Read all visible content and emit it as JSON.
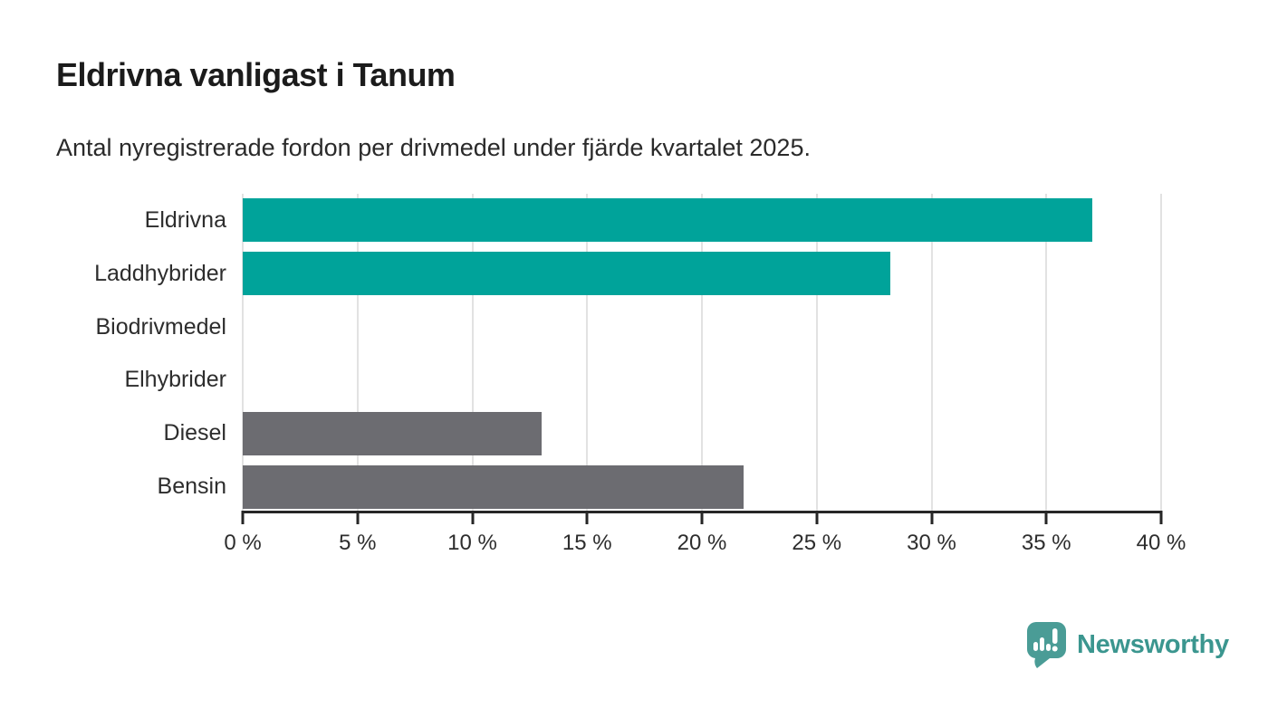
{
  "page": {
    "title": "Eldrivna vanligast i Tanum",
    "subtitle": "Antal nyregistrerade fordon per drivmedel under fjärde kvartalet 2025."
  },
  "chart_data": {
    "type": "bar",
    "orientation": "horizontal",
    "title": "Eldrivna vanligast i Tanum",
    "subtitle": "Antal nyregistrerade fordon per drivmedel under fjärde kvartalet 2025.",
    "categories": [
      "Eldrivna",
      "Laddhybrider",
      "Biodrivmedel",
      "Elhybrider",
      "Diesel",
      "Bensin"
    ],
    "values": [
      37.0,
      28.2,
      0,
      0,
      13.0,
      21.8
    ],
    "unit": "%",
    "xlim": [
      0,
      40
    ],
    "x_ticks": [
      0,
      5,
      10,
      15,
      20,
      25,
      30,
      35,
      40
    ],
    "x_tick_labels": [
      "0 %",
      "5 %",
      "10 %",
      "15 %",
      "20 %",
      "25 %",
      "30 %",
      "35 %",
      "40 %"
    ],
    "bar_colors": [
      "#00a39a",
      "#00a39a",
      "#00a39a",
      "#00a39a",
      "#6c6c71",
      "#6c6c71"
    ],
    "colors": {
      "teal_accent": "#00a39a",
      "gray_fossil": "#6c6c71",
      "gridline": "#e2e2e2",
      "axis": "#262626"
    },
    "grid": true,
    "legend": false
  },
  "branding": {
    "name": "Newsworthy",
    "text_color": "#3b968f",
    "icon": "newsworthy-pin-barchart-icon",
    "icon_color": "#4a9c96"
  }
}
